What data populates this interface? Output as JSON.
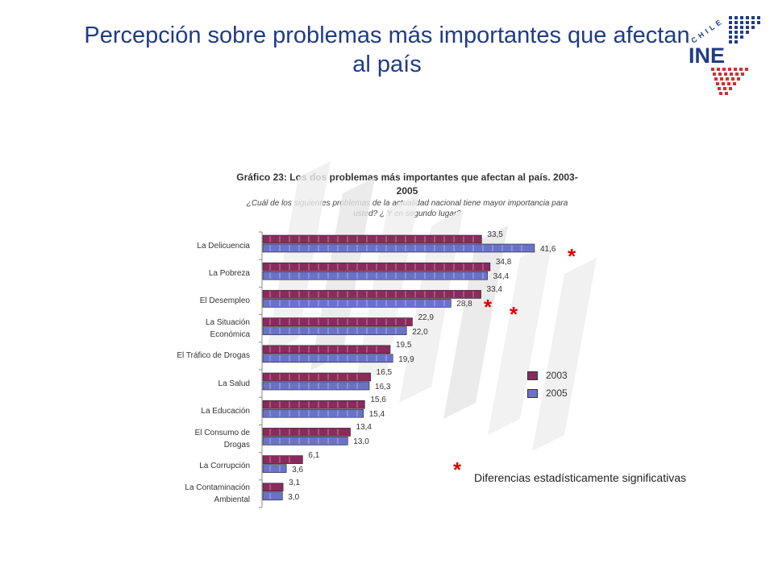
{
  "slide_title": "Percepción sobre problemas más importantes que afectan al país",
  "logo": {
    "country": "CHILE",
    "acronym": "INE"
  },
  "chart_data": {
    "type": "bar",
    "title": "Gráfico 23: Los dos problemas más importantes que afectan al país. 2003- 2005",
    "subtitle": "¿Cuál de los siguientes problemas de la actualidad nacional tiene mayor importancia para usted? ¿ Y en segundo lugar?",
    "orientation": "horizontal",
    "categories": [
      "La Delicuencia",
      "La Pobreza",
      "El Desempleo",
      "La Situación Económica",
      "El Tráfico de Drogas",
      "La Salud",
      "La Educación",
      "El Consumo de Drogas",
      "La Corrupción",
      "La Contaminación Ambiental"
    ],
    "category_lines": [
      [
        "La Delicuencia"
      ],
      [
        "La Pobreza"
      ],
      [
        "El Desempleo"
      ],
      [
        "La Situación",
        "Económica"
      ],
      [
        "El Tráfico de Drogas"
      ],
      [
        "La Salud"
      ],
      [
        "La Educación"
      ],
      [
        "El Consumo de",
        "Drogas"
      ],
      [
        "La Corrupción"
      ],
      [
        "La Contaminación",
        "Ambiental"
      ]
    ],
    "series": [
      {
        "name": "2003",
        "color": "#8b2a5c",
        "values": [
          33.5,
          34.8,
          33.4,
          22.9,
          19.5,
          16.5,
          15.6,
          13.4,
          6.1,
          3.1
        ],
        "labels": [
          "33,5",
          "34,8",
          "33,4",
          "22,9",
          "19,5",
          "16,5",
          "15,6",
          "13,4",
          "6,1",
          "3,1"
        ]
      },
      {
        "name": "2005",
        "color": "#6a72c8",
        "values": [
          41.6,
          34.4,
          28.8,
          22.0,
          19.9,
          16.3,
          15.4,
          13.0,
          3.6,
          3.0
        ],
        "labels": [
          "41,6",
          "34,4",
          "28,8",
          "22,0",
          "19,9",
          "16,3",
          "15,4",
          "13,0",
          "3,6",
          "3,0"
        ]
      }
    ],
    "legend_placement": "right",
    "significant_categories": [
      "La Delicuencia",
      "El Desempleo"
    ],
    "significance_marker": "*",
    "significance_note": "Diferencias estadísticamente significativas"
  }
}
